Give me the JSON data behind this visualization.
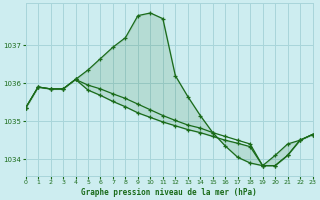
{
  "title": "Graphe pression niveau de la mer (hPa)",
  "background_color": "#cdedf0",
  "grid_color": "#a8d5da",
  "line_color": "#1a6b1a",
  "xlim": [
    0,
    23
  ],
  "ylim": [
    1033.55,
    1038.1
  ],
  "yticks": [
    1034,
    1035,
    1036,
    1037
  ],
  "xticks": [
    0,
    1,
    2,
    3,
    4,
    5,
    6,
    7,
    8,
    9,
    10,
    11,
    12,
    13,
    14,
    15,
    16,
    17,
    18,
    19,
    20,
    21,
    22,
    23
  ],
  "series1_x": [
    0,
    1,
    2,
    3,
    4,
    5,
    6,
    7,
    8,
    9,
    10,
    11,
    12,
    13,
    14,
    15,
    16,
    17,
    18,
    19,
    20,
    21,
    22,
    23
  ],
  "series1_y": [
    1035.35,
    1035.9,
    1035.85,
    1035.85,
    1036.1,
    1036.35,
    1036.65,
    1036.95,
    1037.2,
    1037.78,
    1037.85,
    1037.7,
    1036.2,
    1035.65,
    1035.15,
    1034.7,
    1034.35,
    1034.05,
    1033.9,
    1033.83,
    1034.1,
    1034.4,
    1034.5,
    1034.65
  ],
  "series2_x": [
    0,
    1,
    2,
    3,
    4,
    5,
    6,
    7,
    8,
    9,
    10,
    11,
    12,
    13,
    14,
    15,
    16,
    17,
    18,
    19,
    20,
    21,
    22,
    23
  ],
  "series2_y": [
    1035.35,
    1035.9,
    1035.85,
    1035.85,
    1036.1,
    1035.82,
    1035.68,
    1035.52,
    1035.38,
    1035.22,
    1035.1,
    1034.98,
    1034.88,
    1034.78,
    1034.7,
    1034.6,
    1034.5,
    1034.42,
    1034.33,
    1033.83,
    1033.83,
    1034.1,
    1034.5,
    1034.65
  ],
  "series3_x": [
    0,
    1,
    2,
    3,
    4,
    5,
    6,
    7,
    8,
    9,
    10,
    11,
    12,
    13,
    14,
    15,
    16,
    17,
    18,
    19,
    20,
    21,
    22,
    23
  ],
  "series3_y": [
    1035.35,
    1035.9,
    1035.85,
    1035.85,
    1036.1,
    1035.95,
    1035.85,
    1035.72,
    1035.6,
    1035.45,
    1035.3,
    1035.15,
    1035.02,
    1034.9,
    1034.82,
    1034.7,
    1034.6,
    1034.5,
    1034.4,
    1033.83,
    1033.83,
    1034.1,
    1034.5,
    1034.65
  ]
}
